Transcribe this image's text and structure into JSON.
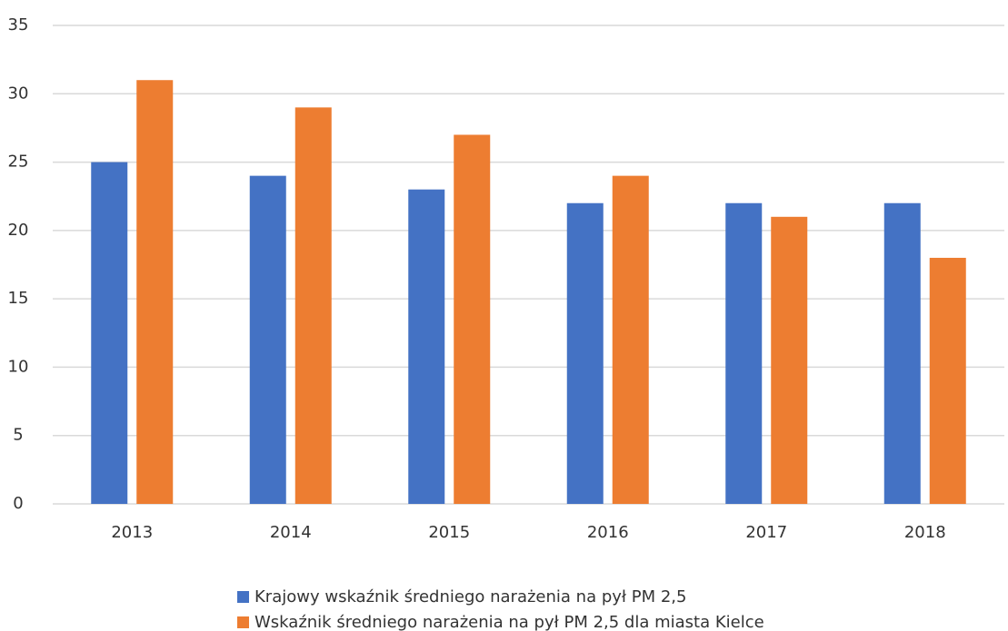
{
  "chart_data": {
    "type": "bar",
    "categories": [
      "2013",
      "2014",
      "2015",
      "2016",
      "2017",
      "2018"
    ],
    "series": [
      {
        "name": "Krajowy wskaźnik średniego narażenia na pył PM 2,5",
        "color": "#4472c4",
        "values": [
          25,
          24,
          23,
          22,
          22,
          22
        ]
      },
      {
        "name": "Wskaźnik średniego narażenia na pył PM 2,5 dla miasta Kielce",
        "color": "#ed7d31",
        "values": [
          31,
          29,
          27,
          24,
          21,
          18
        ]
      }
    ],
    "ylim": [
      0,
      35
    ],
    "yticks": [
      0,
      5,
      10,
      15,
      20,
      25,
      30,
      35
    ],
    "grid": true,
    "legend": "bottom"
  }
}
